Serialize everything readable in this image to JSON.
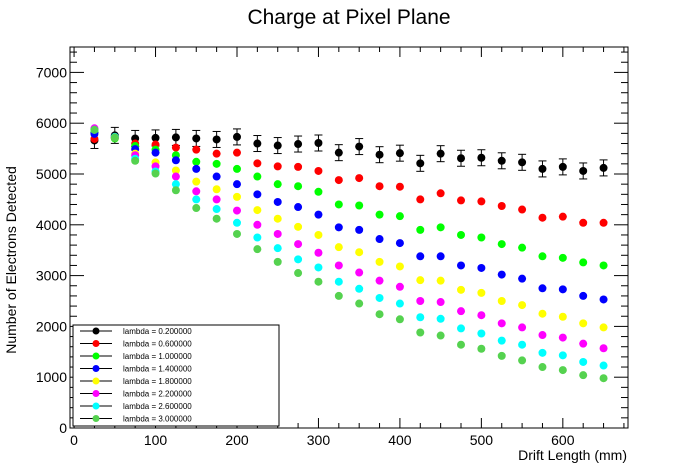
{
  "chart_data": {
    "type": "scatter",
    "title": "Charge at Pixel Plane",
    "xlabel": "Drift Length (mm)",
    "ylabel": "Number of Electrons Detected",
    "xlim": [
      -5,
      680
    ],
    "ylim": [
      0,
      7500
    ],
    "xticks": [
      0,
      100,
      200,
      300,
      400,
      500,
      600
    ],
    "yticks": [
      0,
      1000,
      2000,
      3000,
      4000,
      5000,
      6000,
      7000
    ],
    "grid": false,
    "legend_position": "bottom-left",
    "x": [
      25,
      50,
      75,
      100,
      125,
      150,
      175,
      200,
      225,
      250,
      275,
      300,
      325,
      350,
      375,
      400,
      425,
      450,
      475,
      500,
      525,
      550,
      575,
      600,
      625,
      650
    ],
    "series": [
      {
        "name": "lambda = 0.200000",
        "color": "#000000",
        "values": [
          5660,
          5760,
          5700,
          5710,
          5720,
          5700,
          5680,
          5730,
          5600,
          5560,
          5590,
          5610,
          5420,
          5540,
          5380,
          5410,
          5210,
          5400,
          5310,
          5320,
          5260,
          5230,
          5100,
          5140,
          5060,
          5120
        ]
      },
      {
        "name": "lambda = 0.600000",
        "color": "#ff0000",
        "values": [
          5690,
          5710,
          5600,
          5580,
          5520,
          5480,
          5400,
          5420,
          5210,
          5150,
          5140,
          5060,
          4880,
          4920,
          4760,
          4750,
          4500,
          4620,
          4480,
          4460,
          4370,
          4300,
          4140,
          4160,
          4040,
          4040
        ]
      },
      {
        "name": "lambda = 1.000000",
        "color": "#00ff00",
        "values": [
          5840,
          5700,
          5550,
          5480,
          5370,
          5240,
          5200,
          5100,
          4950,
          4800,
          4760,
          4650,
          4400,
          4380,
          4200,
          4170,
          3900,
          3950,
          3800,
          3750,
          3620,
          3550,
          3380,
          3350,
          3260,
          3200
        ]
      },
      {
        "name": "lambda = 1.400000",
        "color": "#0000ff",
        "values": [
          5790,
          5730,
          5490,
          5420,
          5270,
          5100,
          4950,
          4800,
          4600,
          4450,
          4350,
          4200,
          3950,
          3900,
          3720,
          3640,
          3380,
          3380,
          3200,
          3150,
          3020,
          2940,
          2750,
          2730,
          2600,
          2530
        ]
      },
      {
        "name": "lambda = 1.800000",
        "color": "#ffff00",
        "values": [
          5870,
          5720,
          5400,
          5230,
          5070,
          4850,
          4700,
          4550,
          4290,
          4120,
          3960,
          3800,
          3560,
          3460,
          3270,
          3180,
          2910,
          2900,
          2720,
          2660,
          2500,
          2420,
          2250,
          2190,
          2060,
          1980
        ]
      },
      {
        "name": "lambda = 2.200000",
        "color": "#ff00ff",
        "values": [
          5900,
          5720,
          5370,
          5150,
          4950,
          4660,
          4500,
          4280,
          4000,
          3820,
          3620,
          3450,
          3200,
          3060,
          2900,
          2780,
          2500,
          2480,
          2300,
          2220,
          2060,
          1980,
          1830,
          1780,
          1660,
          1570
        ]
      },
      {
        "name": "lambda = 2.600000",
        "color": "#00ffff",
        "values": [
          5870,
          5730,
          5300,
          5050,
          4800,
          4500,
          4310,
          4040,
          3750,
          3540,
          3320,
          3160,
          2880,
          2740,
          2560,
          2450,
          2180,
          2150,
          1960,
          1860,
          1720,
          1640,
          1480,
          1430,
          1300,
          1230
        ]
      },
      {
        "name": "lambda = 3.000000",
        "color": "#55d24f",
        "values": [
          5870,
          5720,
          5260,
          5010,
          4680,
          4330,
          4120,
          3820,
          3520,
          3270,
          3050,
          2880,
          2600,
          2450,
          2240,
          2140,
          1880,
          1820,
          1640,
          1560,
          1420,
          1330,
          1200,
          1140,
          1040,
          980
        ]
      }
    ]
  }
}
